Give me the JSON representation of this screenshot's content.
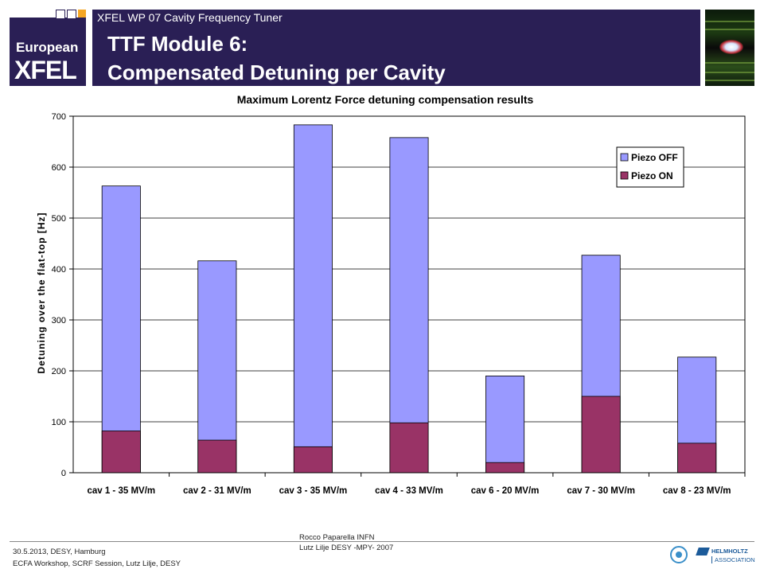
{
  "header": {
    "logo_line1": "European",
    "logo_line2": "XFEL",
    "subtitle": "XFEL WP 07 Cavity Frequency Tuner",
    "title_line1": "TTF Module 6:",
    "title_line2": "Compensated Detuning per Cavity"
  },
  "colors": {
    "header_bg": "#2a1f55",
    "piezo_off": "#9999ff",
    "piezo_on": "#993366",
    "logo_square_a": "#ffffff",
    "logo_square_b": "#f5a623"
  },
  "chart_data": {
    "type": "bar",
    "stacked": false,
    "title": "Maximum Lorentz Force detuning compensation results",
    "xlabel": "",
    "ylabel": "Detuning over the flat-top [Hz]",
    "ylim": [
      0,
      700
    ],
    "yticks": [
      0,
      100,
      200,
      300,
      400,
      500,
      600,
      700
    ],
    "grid": true,
    "legend_position": "top-right",
    "categories": [
      "cav 1 - 35 MV/m",
      "cav 2 - 31 MV/m",
      "cav 3 - 35 MV/m",
      "cav 4 - 33 MV/m",
      "cav 6 - 20 MV/m",
      "cav 7 - 30 MV/m",
      "cav 8 - 23 MV/m"
    ],
    "series": [
      {
        "name": "Piezo OFF",
        "values": [
          563,
          416,
          683,
          658,
          190,
          427,
          227
        ]
      },
      {
        "name": "Piezo ON",
        "values": [
          82,
          64,
          51,
          98,
          20,
          150,
          58
        ]
      }
    ]
  },
  "footer": {
    "date_place": "30.5.2013, DESY, Hamburg",
    "event": "ECFA Workshop, SCRF Session, Lutz Lilje, DESY",
    "author1": "Rocco Paparella INFN",
    "author2": "Lutz Lilje  DESY -MPY- 2007",
    "assoc_line1": "HELMHOLTZ",
    "assoc_line2": "ASSOCIATION"
  }
}
